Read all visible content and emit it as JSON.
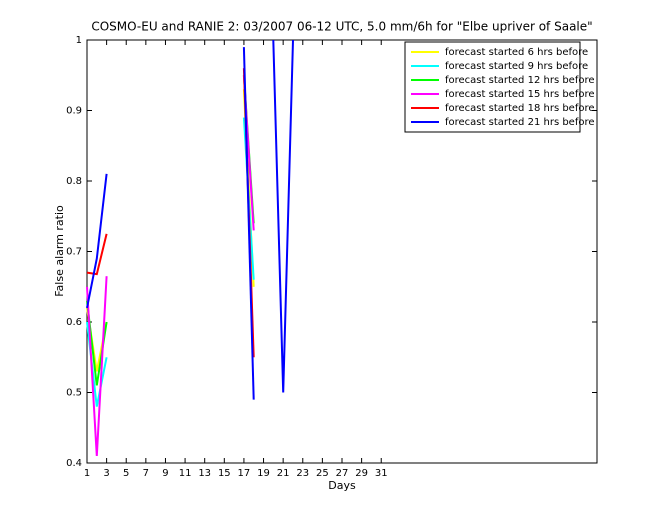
{
  "chart_data": {
    "type": "line",
    "title": "COSMO-EU and RANIE 2: 03/2007 06-12 UTC, 5.0 mm/6h for \"Elbe upriver of Saale\"",
    "xlabel": "Days",
    "ylabel": "False alarm ratio",
    "x": [
      1,
      2,
      3,
      4,
      5,
      6,
      7,
      8,
      9,
      10,
      11,
      12,
      13,
      14,
      15,
      16,
      17,
      18,
      19,
      20,
      21,
      22
    ],
    "xlim": [
      1,
      53
    ],
    "xticks": [
      1,
      3,
      5,
      7,
      9,
      11,
      13,
      15,
      17,
      19,
      21,
      23,
      25,
      27,
      29,
      31
    ],
    "ylim": [
      0.4,
      1
    ],
    "yticks": [
      0.4,
      0.5,
      0.6,
      0.7,
      0.8,
      0.9,
      1
    ],
    "legend_position": "upper right",
    "series": [
      {
        "name": "forecast started 6 hrs before",
        "color": "#ffff00",
        "values": [
          0.62,
          0.53,
          0.6,
          null,
          null,
          null,
          null,
          null,
          null,
          null,
          null,
          null,
          null,
          null,
          null,
          null,
          0.93,
          0.65,
          null,
          null,
          null,
          null
        ]
      },
      {
        "name": "forecast started 9 hrs before",
        "color": "#00ffff",
        "values": [
          0.6,
          0.48,
          0.55,
          null,
          null,
          null,
          null,
          null,
          null,
          null,
          null,
          null,
          null,
          null,
          null,
          null,
          0.89,
          0.66,
          null,
          null,
          null,
          null
        ]
      },
      {
        "name": "forecast started 12 hrs before",
        "color": "#00ff00",
        "values": [
          0.63,
          0.51,
          0.6,
          null,
          null,
          null,
          null,
          null,
          null,
          null,
          null,
          null,
          null,
          null,
          null,
          null,
          0.95,
          0.74,
          null,
          null,
          null,
          null
        ]
      },
      {
        "name": "forecast started 15 hrs before",
        "color": "#ff00ff",
        "values": [
          0.65,
          0.41,
          0.665,
          null,
          null,
          null,
          null,
          null,
          null,
          null,
          null,
          null,
          null,
          null,
          null,
          null,
          0.95,
          0.73,
          null,
          null,
          null,
          null
        ]
      },
      {
        "name": "forecast started 18 hrs before",
        "color": "#ff0000",
        "values": [
          0.67,
          0.668,
          0.725,
          null,
          null,
          null,
          null,
          null,
          null,
          null,
          null,
          null,
          null,
          null,
          null,
          null,
          0.96,
          0.55,
          null,
          null,
          null,
          null
        ]
      },
      {
        "name": "forecast started 21 hrs before",
        "color": "#0000ff",
        "values": [
          0.62,
          0.69,
          0.81,
          null,
          null,
          null,
          null,
          null,
          null,
          null,
          null,
          null,
          null,
          null,
          null,
          null,
          0.99,
          0.49,
          null,
          1,
          0.5,
          1
        ]
      }
    ]
  }
}
